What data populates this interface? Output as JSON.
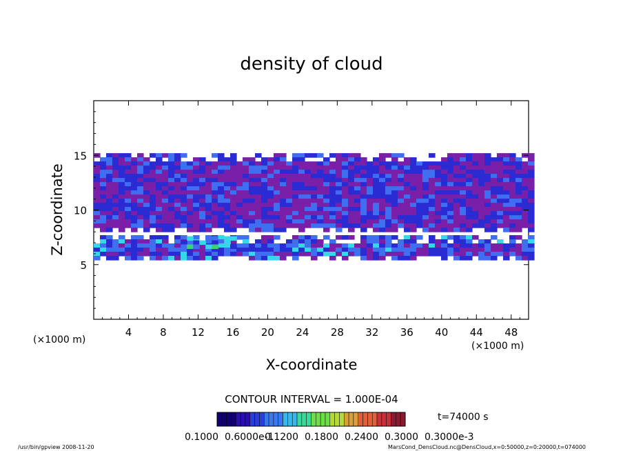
{
  "chart_data": {
    "type": "heatmap",
    "title": "density of cloud",
    "xlabel": "X-coordinate",
    "ylabel": "Z-coordinate",
    "x_unit_left": "(×1000 m)",
    "x_unit_right": "(×1000 m)",
    "xlim": [
      0,
      50
    ],
    "ylim": [
      0,
      20
    ],
    "x_ticks": [
      4,
      8,
      12,
      16,
      20,
      24,
      28,
      32,
      36,
      40,
      44,
      48
    ],
    "y_ticks": [
      5,
      10,
      15
    ],
    "contour_interval": "CONTOUR INTERVAL = 1.000E-04",
    "colorbar_labels": [
      "0.1000",
      "0.6000e-1",
      "0.1200",
      "0.1800",
      "0.2400",
      "0.3000",
      "0.3000e-3"
    ],
    "time_label": "t=74000 s",
    "regions": [
      {
        "name": "upper cloud layer",
        "x": [
          0,
          50
        ],
        "z": [
          8.2,
          15.2
        ],
        "level": "low (purple/blue)"
      },
      {
        "name": "lower cloud layer",
        "x": [
          0,
          50
        ],
        "z": [
          5.5,
          7.7
        ],
        "level": "low to moderate"
      },
      {
        "name": "peak density core",
        "x": [
          10,
          16
        ],
        "z": [
          6.6,
          7.6
        ],
        "level": "high (cyan/green)"
      }
    ],
    "colors": {
      "low": "#7a1fa8",
      "mid_low": "#2b2bd4",
      "mid": "#3f6ff0",
      "mid_high": "#34d8e8",
      "high": "#3dd27a"
    }
  },
  "footer": {
    "left": "/usr/bin/gpview  2008-11-20",
    "right": "MarsCond_DensCloud.nc@DensCloud,x=0:50000,z=0:20000,t=074000"
  }
}
